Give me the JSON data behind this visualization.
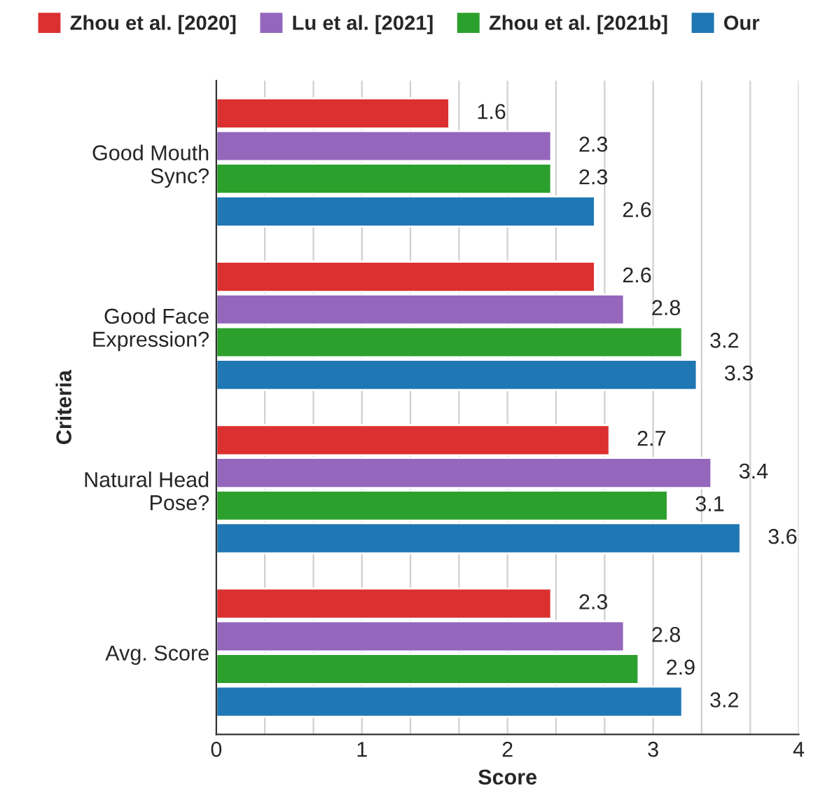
{
  "chart_data": {
    "type": "bar",
    "orientation": "horizontal",
    "xlabel": "Score",
    "ylabel": "Criteria",
    "categories": [
      "Good Mouth\nSync?",
      "Good Face\nExpression?",
      "Natural Head\nPose?",
      "Avg. Score"
    ],
    "series": [
      {
        "name": "Zhou et al. [2020]",
        "color": "#dc3030",
        "values": [
          1.6,
          2.6,
          2.7,
          2.3
        ]
      },
      {
        "name": "Lu et al. [2021]",
        "color": "#9467bd",
        "values": [
          2.3,
          2.8,
          3.4,
          2.8
        ]
      },
      {
        "name": "Zhou et al. [2021b]",
        "color": "#2ca02c",
        "values": [
          2.3,
          3.2,
          3.1,
          2.9
        ]
      },
      {
        "name": "Our",
        "color": "#1f77b4",
        "values": [
          2.6,
          3.3,
          3.6,
          3.2
        ]
      }
    ],
    "xlim": [
      0,
      4
    ],
    "xticks": [
      0,
      {
        "value": 0.333,
        "label": null
      },
      {
        "value": 0.667,
        "label": null
      },
      1,
      {
        "value": 1.333,
        "label": null
      },
      {
        "value": 1.667,
        "label": null
      },
      2,
      {
        "value": 2.333,
        "label": null
      },
      {
        "value": 2.667,
        "label": null
      },
      3,
      {
        "value": 3.333,
        "label": null
      },
      {
        "value": 3.667,
        "label": null
      },
      4
    ],
    "grid": "x",
    "legend": "top",
    "data_labels": true
  }
}
